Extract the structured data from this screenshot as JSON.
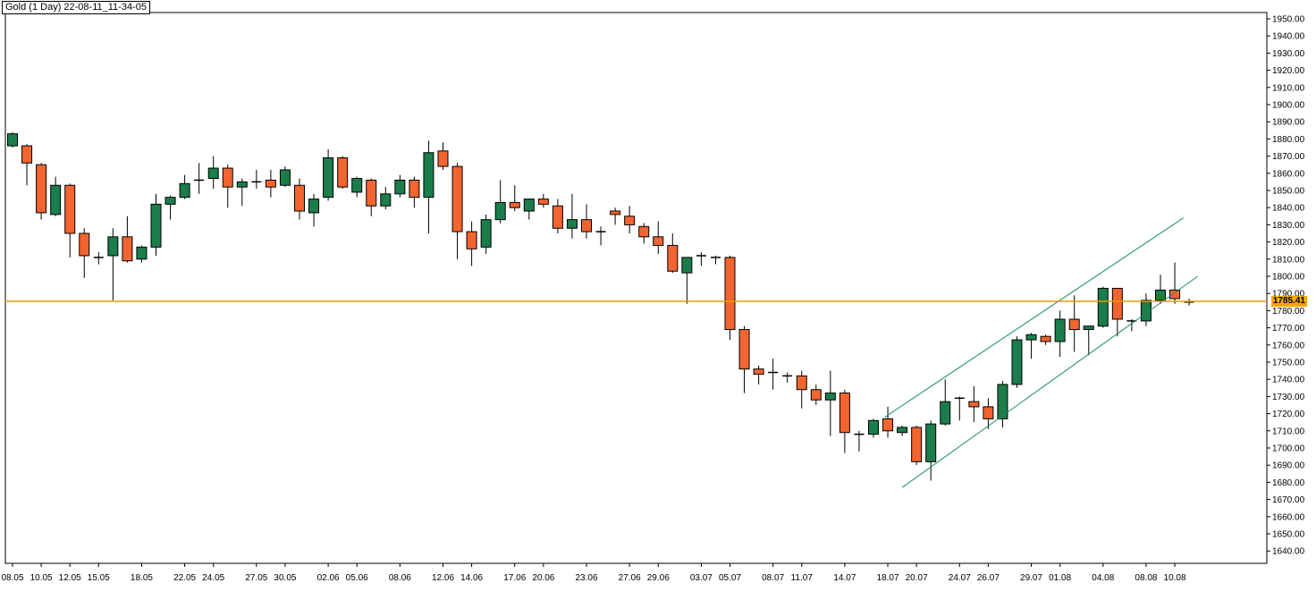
{
  "window": {
    "title": "Gold (1 Day) 22-08-11_11-34-05"
  },
  "colors": {
    "background": "#ffffff",
    "bull": "#1a7d4a",
    "bear": "#f26430",
    "wick": "#000000",
    "current_price_line": "#e89a00",
    "channel": "#1a8a6a",
    "axis": "#000000"
  },
  "chart_data": {
    "type": "candlestick",
    "instrument": "Gold",
    "timeframe": "1 Day",
    "ylim": [
      1635,
      1955
    ],
    "yticks": [
      1640,
      1650,
      1660,
      1670,
      1680,
      1690,
      1700,
      1710,
      1720,
      1730,
      1740,
      1750,
      1760,
      1770,
      1780,
      1790,
      1800,
      1810,
      1820,
      1830,
      1840,
      1850,
      1860,
      1870,
      1880,
      1890,
      1900,
      1910,
      1920,
      1930,
      1940,
      1950
    ],
    "current_price": 1785.41,
    "current_price_label": "1785.41",
    "x_tick_labels": [
      {
        "label": "08.05",
        "index": 0
      },
      {
        "label": "10.05",
        "index": 2
      },
      {
        "label": "12.05",
        "index": 4
      },
      {
        "label": "15.05",
        "index": 6
      },
      {
        "label": "18.05",
        "index": 9
      },
      {
        "label": "22.05",
        "index": 12
      },
      {
        "label": "24.05",
        "index": 14
      },
      {
        "label": "27.05",
        "index": 17
      },
      {
        "label": "30.05",
        "index": 19
      },
      {
        "label": "02.06",
        "index": 22
      },
      {
        "label": "05.06",
        "index": 24
      },
      {
        "label": "08.06",
        "index": 27
      },
      {
        "label": "12.06",
        "index": 30
      },
      {
        "label": "14.06",
        "index": 32
      },
      {
        "label": "17.06",
        "index": 35
      },
      {
        "label": "20.06",
        "index": 37
      },
      {
        "label": "23.06",
        "index": 40
      },
      {
        "label": "27.06",
        "index": 43
      },
      {
        "label": "29.06",
        "index": 45
      },
      {
        "label": "03.07",
        "index": 48
      },
      {
        "label": "05.07",
        "index": 50
      },
      {
        "label": "08.07",
        "index": 53
      },
      {
        "label": "11.07",
        "index": 55
      },
      {
        "label": "14.07",
        "index": 58
      },
      {
        "label": "18.07",
        "index": 61
      },
      {
        "label": "20.07",
        "index": 63
      },
      {
        "label": "24.07",
        "index": 66
      },
      {
        "label": "26.07",
        "index": 68
      },
      {
        "label": "29.07",
        "index": 71
      },
      {
        "label": "01.08",
        "index": 73
      },
      {
        "label": "04.08",
        "index": 76
      },
      {
        "label": "08.08",
        "index": 79
      },
      {
        "label": "10.08",
        "index": 81
      }
    ],
    "candles": [
      {
        "o": 1876,
        "h": 1884,
        "l": 1875,
        "c": 1883
      },
      {
        "o": 1876,
        "h": 1877,
        "l": 1853,
        "c": 1866
      },
      {
        "o": 1865,
        "h": 1866,
        "l": 1833,
        "c": 1837
      },
      {
        "o": 1836,
        "h": 1858,
        "l": 1835,
        "c": 1853
      },
      {
        "o": 1853,
        "h": 1854,
        "l": 1811,
        "c": 1825
      },
      {
        "o": 1825,
        "h": 1828,
        "l": 1799,
        "c": 1812
      },
      {
        "o": 1810,
        "h": 1814,
        "l": 1807,
        "c": 1811
      },
      {
        "o": 1812,
        "h": 1828,
        "l": 1786,
        "c": 1823
      },
      {
        "o": 1823,
        "h": 1835,
        "l": 1808,
        "c": 1809
      },
      {
        "o": 1810,
        "h": 1818,
        "l": 1808,
        "c": 1817
      },
      {
        "o": 1817,
        "h": 1848,
        "l": 1812,
        "c": 1842
      },
      {
        "o": 1842,
        "h": 1847,
        "l": 1833,
        "c": 1846
      },
      {
        "o": 1846,
        "h": 1859,
        "l": 1845,
        "c": 1854
      },
      {
        "o": 1855,
        "h": 1866,
        "l": 1848,
        "c": 1856
      },
      {
        "o": 1857,
        "h": 1870,
        "l": 1851,
        "c": 1863
      },
      {
        "o": 1863,
        "h": 1865,
        "l": 1840,
        "c": 1852
      },
      {
        "o": 1852,
        "h": 1857,
        "l": 1841,
        "c": 1855
      },
      {
        "o": 1854,
        "h": 1862,
        "l": 1851,
        "c": 1855
      },
      {
        "o": 1856,
        "h": 1862,
        "l": 1846,
        "c": 1852
      },
      {
        "o": 1853,
        "h": 1864,
        "l": 1852,
        "c": 1862
      },
      {
        "o": 1853,
        "h": 1857,
        "l": 1833,
        "c": 1838
      },
      {
        "o": 1837,
        "h": 1848,
        "l": 1829,
        "c": 1845
      },
      {
        "o": 1846,
        "h": 1874,
        "l": 1844,
        "c": 1869
      },
      {
        "o": 1869,
        "h": 1870,
        "l": 1851,
        "c": 1852
      },
      {
        "o": 1849,
        "h": 1858,
        "l": 1846,
        "c": 1857
      },
      {
        "o": 1856,
        "h": 1857,
        "l": 1835,
        "c": 1841
      },
      {
        "o": 1841,
        "h": 1852,
        "l": 1839,
        "c": 1848
      },
      {
        "o": 1848,
        "h": 1859,
        "l": 1846,
        "c": 1856
      },
      {
        "o": 1856,
        "h": 1858,
        "l": 1840,
        "c": 1846
      },
      {
        "o": 1846,
        "h": 1879,
        "l": 1825,
        "c": 1872
      },
      {
        "o": 1873,
        "h": 1878,
        "l": 1862,
        "c": 1864
      },
      {
        "o": 1864,
        "h": 1866,
        "l": 1810,
        "c": 1826
      },
      {
        "o": 1826,
        "h": 1832,
        "l": 1806,
        "c": 1816
      },
      {
        "o": 1817,
        "h": 1836,
        "l": 1813,
        "c": 1833
      },
      {
        "o": 1833,
        "h": 1856,
        "l": 1831,
        "c": 1843
      },
      {
        "o": 1843,
        "h": 1853,
        "l": 1838,
        "c": 1840
      },
      {
        "o": 1838,
        "h": 1845,
        "l": 1833,
        "c": 1845
      },
      {
        "o": 1845,
        "h": 1848,
        "l": 1840,
        "c": 1842
      },
      {
        "o": 1841,
        "h": 1845,
        "l": 1825,
        "c": 1828
      },
      {
        "o": 1828,
        "h": 1848,
        "l": 1822,
        "c": 1833
      },
      {
        "o": 1833,
        "h": 1842,
        "l": 1822,
        "c": 1826
      },
      {
        "o": 1826,
        "h": 1829,
        "l": 1818,
        "c": 1826
      },
      {
        "o": 1838,
        "h": 1840,
        "l": 1830,
        "c": 1836
      },
      {
        "o": 1835,
        "h": 1841,
        "l": 1825,
        "c": 1830
      },
      {
        "o": 1829,
        "h": 1831,
        "l": 1819,
        "c": 1823
      },
      {
        "o": 1823,
        "h": 1832,
        "l": 1813,
        "c": 1818
      },
      {
        "o": 1818,
        "h": 1825,
        "l": 1802,
        "c": 1803
      },
      {
        "o": 1802,
        "h": 1811,
        "l": 1784,
        "c": 1811
      },
      {
        "o": 1811,
        "h": 1814,
        "l": 1806,
        "c": 1812
      },
      {
        "o": 1811,
        "h": 1812,
        "l": 1807,
        "c": 1811
      },
      {
        "o": 1811,
        "h": 1812,
        "l": 1763,
        "c": 1769
      },
      {
        "o": 1769,
        "h": 1771,
        "l": 1732,
        "c": 1746
      },
      {
        "o": 1746,
        "h": 1748,
        "l": 1737,
        "c": 1743
      },
      {
        "o": 1743,
        "h": 1752,
        "l": 1734,
        "c": 1744
      },
      {
        "o": 1743,
        "h": 1744,
        "l": 1738,
        "c": 1742
      },
      {
        "o": 1742,
        "h": 1745,
        "l": 1723,
        "c": 1734
      },
      {
        "o": 1734,
        "h": 1737,
        "l": 1725,
        "c": 1728
      },
      {
        "o": 1728,
        "h": 1745,
        "l": 1707,
        "c": 1732
      },
      {
        "o": 1732,
        "h": 1734,
        "l": 1697,
        "c": 1709
      },
      {
        "o": 1708,
        "h": 1710,
        "l": 1698,
        "c": 1708
      },
      {
        "o": 1708,
        "h": 1717,
        "l": 1706,
        "c": 1716
      },
      {
        "o": 1717,
        "h": 1724,
        "l": 1706,
        "c": 1710
      },
      {
        "o": 1709,
        "h": 1713,
        "l": 1707,
        "c": 1712
      },
      {
        "o": 1712,
        "h": 1713,
        "l": 1690,
        "c": 1692
      },
      {
        "o": 1692,
        "h": 1716,
        "l": 1681,
        "c": 1714
      },
      {
        "o": 1714,
        "h": 1740,
        "l": 1713,
        "c": 1727
      },
      {
        "o": 1728,
        "h": 1730,
        "l": 1716,
        "c": 1729
      },
      {
        "o": 1727,
        "h": 1736,
        "l": 1715,
        "c": 1724
      },
      {
        "o": 1724,
        "h": 1729,
        "l": 1711,
        "c": 1717
      },
      {
        "o": 1717,
        "h": 1739,
        "l": 1712,
        "c": 1737
      },
      {
        "o": 1737,
        "h": 1765,
        "l": 1735,
        "c": 1763
      },
      {
        "o": 1763,
        "h": 1767,
        "l": 1752,
        "c": 1766
      },
      {
        "o": 1765,
        "h": 1766,
        "l": 1760,
        "c": 1762
      },
      {
        "o": 1762,
        "h": 1780,
        "l": 1753,
        "c": 1775
      },
      {
        "o": 1775,
        "h": 1789,
        "l": 1756,
        "c": 1769
      },
      {
        "o": 1769,
        "h": 1771,
        "l": 1754,
        "c": 1771
      },
      {
        "o": 1771,
        "h": 1794,
        "l": 1770,
        "c": 1793
      },
      {
        "o": 1793,
        "h": 1793,
        "l": 1765,
        "c": 1775
      },
      {
        "o": 1773,
        "h": 1775,
        "l": 1768,
        "c": 1774
      },
      {
        "o": 1774,
        "h": 1790,
        "l": 1771,
        "c": 1786
      },
      {
        "o": 1786,
        "h": 1801,
        "l": 1784,
        "c": 1792
      },
      {
        "o": 1792,
        "h": 1808,
        "l": 1784,
        "c": 1787
      },
      {
        "o": 1786,
        "h": 1787,
        "l": 1783,
        "c": 1785
      }
    ],
    "channel_lines": [
      {
        "name": "channel-upper",
        "x1": 60.8,
        "y1": 1718,
        "x2": 81.6,
        "y2": 1834
      },
      {
        "name": "channel-lower",
        "x1": 62.0,
        "y1": 1677,
        "x2": 82.6,
        "y2": 1800
      }
    ]
  }
}
